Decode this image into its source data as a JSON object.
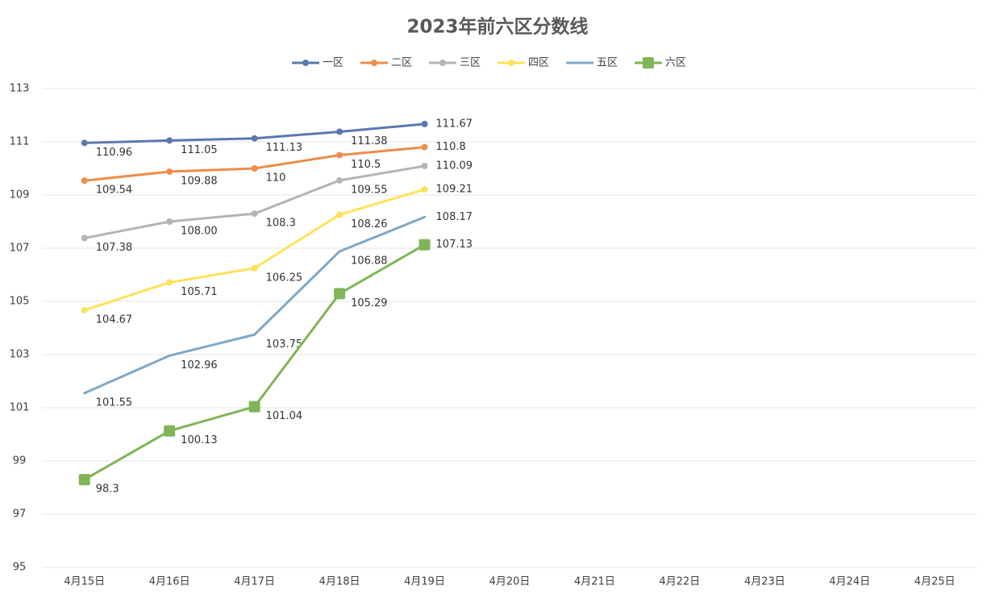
{
  "chart_data": {
    "type": "line",
    "title": "2023年前六区分数线",
    "categories": [
      "4月15日",
      "4月16日",
      "4月17日",
      "4月18日",
      "4月19日",
      "4月20日",
      "4月21日",
      "4月22日",
      "4月23日",
      "4月24日",
      "4月25日"
    ],
    "series": [
      {
        "name": "一区",
        "color": "#5a78b0",
        "marker": "circle",
        "values": [
          110.96,
          111.05,
          111.13,
          111.38,
          111.67,
          null,
          null,
          null,
          null,
          null,
          null
        ]
      },
      {
        "name": "二区",
        "color": "#ee8c4a",
        "marker": "circle",
        "values": [
          109.54,
          109.88,
          110,
          110.5,
          110.8,
          null,
          null,
          null,
          null,
          null,
          null
        ]
      },
      {
        "name": "三区",
        "color": "#b4b4b4",
        "marker": "circle",
        "values": [
          107.38,
          108,
          108.3,
          109.55,
          110.09,
          null,
          null,
          null,
          null,
          null,
          null
        ],
        "value_labels": [
          "107.38",
          "108.00",
          "108.3",
          "109.55",
          "110.09",
          null,
          null,
          null,
          null,
          null,
          null
        ]
      },
      {
        "name": "四区",
        "color": "#fde25a",
        "marker": "circle",
        "values": [
          104.67,
          105.71,
          106.25,
          108.26,
          109.21,
          null,
          null,
          null,
          null,
          null,
          null
        ]
      },
      {
        "name": "五区",
        "color": "#7ea8c8",
        "marker": "none",
        "values": [
          101.55,
          102.96,
          103.75,
          106.88,
          108.17,
          null,
          null,
          null,
          null,
          null,
          null
        ]
      },
      {
        "name": "六区",
        "color": "#7fb558",
        "marker": "square",
        "values": [
          98.3,
          100.13,
          101.04,
          105.29,
          107.13,
          null,
          null,
          null,
          null,
          null,
          null
        ]
      }
    ],
    "ylim": [
      95,
      113
    ],
    "yticks": [
      95,
      97,
      99,
      101,
      103,
      105,
      107,
      109,
      111,
      113
    ],
    "grid": true,
    "legend": "top"
  }
}
